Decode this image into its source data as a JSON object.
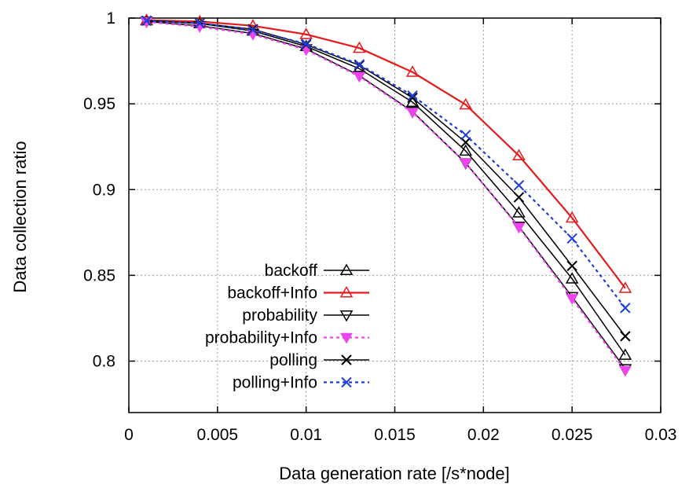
{
  "chart_data": {
    "type": "line",
    "xlabel": "Data generation rate [/s*node]",
    "ylabel": "Data collection ratio",
    "xlim": [
      0,
      0.03
    ],
    "ylim": [
      0.77,
      1.0
    ],
    "xticks": [
      0,
      0.005,
      0.01,
      0.015,
      0.02,
      0.025,
      0.03
    ],
    "xtick_labels": [
      "0",
      "0.005",
      "0.01",
      "0.015",
      "0.02",
      "0.025",
      "0.03"
    ],
    "yticks": [
      0.8,
      0.85,
      0.9,
      0.95,
      1.0
    ],
    "ytick_labels": [
      "0.8",
      "0.85",
      "0.9",
      "0.95",
      "1"
    ],
    "grid": true,
    "legend_position": "bottom-left",
    "x": [
      0.001,
      0.004,
      0.007,
      0.01,
      0.013,
      0.016,
      0.019,
      0.022,
      0.025,
      0.028
    ],
    "series": [
      {
        "name": "backoff",
        "color": "#000000",
        "marker": "triangle-up-open",
        "dash": "solid",
        "values": [
          0.9985,
          0.9968,
          0.9925,
          0.9835,
          0.9705,
          0.951,
          0.9225,
          0.8865,
          0.848,
          0.8035
        ]
      },
      {
        "name": "backoff+Info",
        "color": "#e41a1c",
        "marker": "triangle-up-open",
        "dash": "solid",
        "values": [
          0.9988,
          0.998,
          0.9955,
          0.9905,
          0.9825,
          0.9685,
          0.9495,
          0.9198,
          0.8835,
          0.8425
        ]
      },
      {
        "name": "probability",
        "color": "#000000",
        "marker": "triangle-down-open",
        "dash": "solid",
        "values": [
          0.998,
          0.9955,
          0.991,
          0.982,
          0.9665,
          0.9455,
          0.9155,
          0.8785,
          0.8375,
          0.7955
        ]
      },
      {
        "name": "probability+Info",
        "color": "#ee44ee",
        "marker": "triangle-down-filled",
        "dash": "dotted",
        "values": [
          0.9978,
          0.995,
          0.9905,
          0.9815,
          0.966,
          0.945,
          0.9155,
          0.878,
          0.8365,
          0.7945
        ]
      },
      {
        "name": "polling",
        "color": "#000000",
        "marker": "cross",
        "dash": "solid",
        "values": [
          0.9985,
          0.997,
          0.9935,
          0.9845,
          0.9725,
          0.9535,
          0.9275,
          0.8955,
          0.8555,
          0.8145
        ]
      },
      {
        "name": "polling+Info",
        "color": "#1f3fd6",
        "marker": "cross",
        "dash": "dotted",
        "values": [
          0.9985,
          0.997,
          0.993,
          0.985,
          0.973,
          0.9548,
          0.9318,
          0.9025,
          0.8715,
          0.831
        ]
      }
    ]
  }
}
